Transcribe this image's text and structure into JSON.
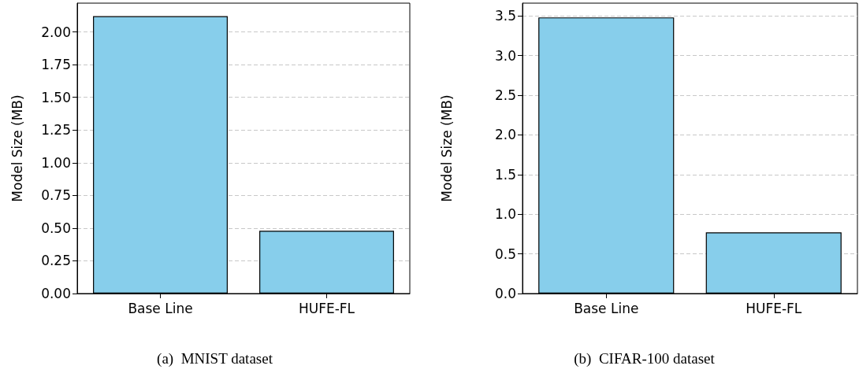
{
  "chart_data": [
    {
      "type": "bar",
      "title": "(a)  MNIST dataset",
      "ylabel": "Model Size (MB)",
      "categories": [
        "Base Line",
        "HUFE-FL"
      ],
      "values": [
        2.12,
        0.48
      ],
      "color": "#87ceeb",
      "ylim": [
        0,
        2.22
      ],
      "yticks": [
        {
          "value": 0,
          "label": "0.00"
        },
        {
          "value": 0.25,
          "label": "0.25"
        },
        {
          "value": 0.5,
          "label": "0.50"
        },
        {
          "value": 0.75,
          "label": "0.75"
        },
        {
          "value": 1,
          "label": "1.00"
        },
        {
          "value": 1.25,
          "label": "1.25"
        },
        {
          "value": 1.5,
          "label": "1.50"
        },
        {
          "value": 1.75,
          "label": "1.75"
        },
        {
          "value": 2,
          "label": "2.00"
        }
      ],
      "grid": "y"
    },
    {
      "type": "bar",
      "title": "(b)  CIFAR-100 dataset",
      "ylabel": "Model Size (MB)",
      "categories": [
        "Base Line",
        "HUFE-FL"
      ],
      "values": [
        3.48,
        0.77
      ],
      "color": "#87ceeb",
      "ylim": [
        0,
        3.66
      ],
      "yticks": [
        {
          "value": 0,
          "label": "0.0"
        },
        {
          "value": 0.5,
          "label": "0.5"
        },
        {
          "value": 1,
          "label": "1.0"
        },
        {
          "value": 1.5,
          "label": "1.5"
        },
        {
          "value": 2,
          "label": "2.0"
        },
        {
          "value": 2.5,
          "label": "2.5"
        },
        {
          "value": 3,
          "label": "3.0"
        },
        {
          "value": 3.5,
          "label": "3.5"
        }
      ],
      "grid": "y"
    }
  ]
}
